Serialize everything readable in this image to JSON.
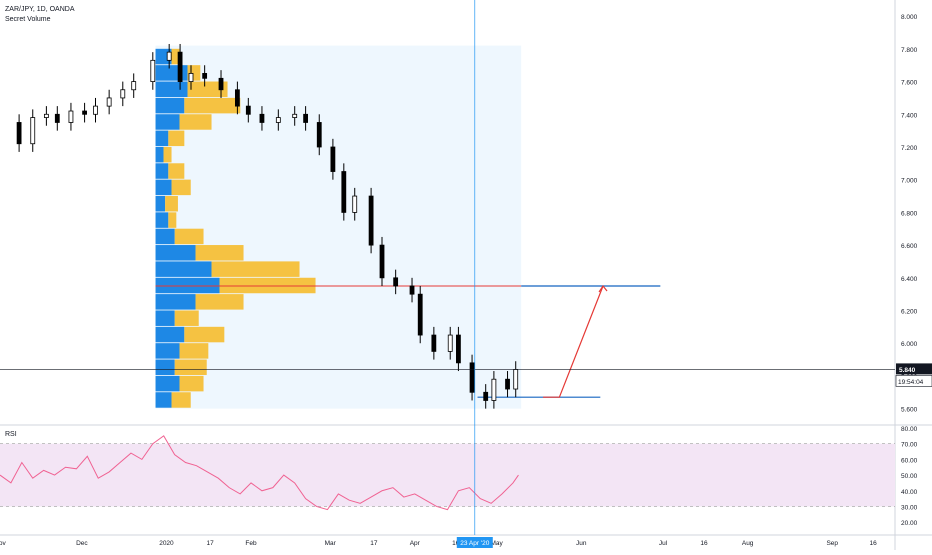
{
  "header": {
    "symbol": "ZAR/JPY, 1D, OANDA",
    "indicator": "Secret Volume"
  },
  "price_axis": {
    "ticks": [
      "8.000",
      "7.800",
      "7.600",
      "7.400",
      "7.200",
      "7.000",
      "6.800",
      "6.600",
      "6.400",
      "6.200",
      "6.000",
      "5.800",
      "5.600"
    ]
  },
  "last_price": {
    "value": "5.840",
    "countdown": "19:54:04"
  },
  "rsi": {
    "label": "RSI",
    "ticks": [
      "80.00",
      "70.00",
      "60.00",
      "50.00",
      "40.00",
      "30.00",
      "20.00"
    ],
    "band": [
      30,
      70
    ]
  },
  "time_axis": {
    "labels": [
      "Nov",
      "Dec",
      "2020",
      "17",
      "Feb",
      "Mar",
      "17",
      "Apr",
      "16",
      "May",
      "Jun",
      "Jul",
      "16",
      "Aug",
      "Sep",
      "16"
    ],
    "crosshair_label": "23 Apr '20"
  },
  "colors": {
    "up": "#ffffff",
    "down": "#000000",
    "volume_blue": "#1e88e5",
    "volume_gold": "#f5c242",
    "profile_box": "#e3f2fd",
    "poc_line": "#e53935",
    "target_line": "#1565c0",
    "arrow": "#e53935",
    "rsi_line": "#f06292",
    "rsi_band": "#f3e5f5",
    "crosshair": "#2196f3"
  },
  "chart_data": [
    {
      "type": "candlestick",
      "title": "ZAR/JPY, 1D, OANDA",
      "xlabel": "",
      "ylabel": "",
      "ylim": [
        5.5,
        8.05
      ],
      "x_range": [
        "2019-11-01",
        "2020-09-24"
      ],
      "series_close": {
        "dates": [
          "2019-11-04",
          "2019-11-08",
          "2019-11-13",
          "2019-11-18",
          "2019-11-22",
          "2019-11-27",
          "2019-12-02",
          "2019-12-06",
          "2019-12-11",
          "2019-12-16",
          "2019-12-20",
          "2019-12-27",
          "2020-01-02",
          "2020-01-06",
          "2020-01-10",
          "2020-01-15",
          "2020-01-21",
          "2020-01-27",
          "2020-01-31",
          "2020-02-05",
          "2020-02-11",
          "2020-02-17",
          "2020-02-21",
          "2020-02-26",
          "2020-03-02",
          "2020-03-06",
          "2020-03-10",
          "2020-03-16",
          "2020-03-20",
          "2020-03-25",
          "2020-03-31",
          "2020-04-03",
          "2020-04-08",
          "2020-04-14",
          "2020-04-17",
          "2020-04-22",
          "2020-04-27",
          "2020-04-30",
          "2020-05-05",
          "2020-05-08"
        ],
        "close": [
          7.35,
          7.22,
          7.38,
          7.4,
          7.35,
          7.42,
          7.4,
          7.45,
          7.5,
          7.55,
          7.6,
          7.73,
          7.78,
          7.6,
          7.65,
          7.62,
          7.55,
          7.45,
          7.4,
          7.35,
          7.38,
          7.4,
          7.35,
          7.2,
          7.05,
          6.8,
          6.9,
          6.6,
          6.4,
          6.35,
          6.3,
          6.05,
          5.95,
          6.05,
          5.88,
          5.7,
          5.65,
          5.78,
          5.72,
          5.84
        ]
      },
      "volume_profile": {
        "price_range": [
          5.6,
          7.82
        ],
        "poc_price": 6.35,
        "bins_price": [
          7.75,
          7.65,
          7.55,
          7.45,
          7.35,
          7.25,
          7.15,
          7.05,
          6.95,
          6.85,
          6.75,
          6.65,
          6.55,
          6.45,
          6.35,
          6.25,
          6.15,
          6.05,
          5.95,
          5.85,
          5.75,
          5.65
        ],
        "blue": [
          10,
          20,
          20,
          18,
          15,
          8,
          5,
          8,
          10,
          6,
          8,
          12,
          25,
          35,
          40,
          25,
          12,
          18,
          15,
          12,
          15,
          10
        ],
        "gold": [
          5,
          8,
          25,
          35,
          20,
          10,
          5,
          10,
          12,
          8,
          5,
          18,
          30,
          55,
          60,
          30,
          15,
          25,
          18,
          20,
          15,
          12
        ]
      },
      "annotations": {
        "poc_line_price": 6.35,
        "target_line_price": 5.67,
        "arrow_from": 5.67,
        "arrow_to": 6.35
      }
    },
    {
      "type": "line",
      "title": "RSI",
      "xlabel": "",
      "ylabel": "",
      "ylim": [
        15,
        80
      ],
      "x": [
        "2019-11-01",
        "2019-11-05",
        "2019-11-09",
        "2019-11-13",
        "2019-11-17",
        "2019-11-21",
        "2019-11-25",
        "2019-11-29",
        "2019-12-03",
        "2019-12-07",
        "2019-12-11",
        "2019-12-15",
        "2019-12-19",
        "2019-12-23",
        "2019-12-27",
        "2019-12-31",
        "2020-01-04",
        "2020-01-08",
        "2020-01-12",
        "2020-01-16",
        "2020-01-20",
        "2020-01-24",
        "2020-01-28",
        "2020-02-01",
        "2020-02-05",
        "2020-02-09",
        "2020-02-13",
        "2020-02-17",
        "2020-02-21",
        "2020-02-25",
        "2020-02-29",
        "2020-03-04",
        "2020-03-08",
        "2020-03-12",
        "2020-03-16",
        "2020-03-20",
        "2020-03-24",
        "2020-03-28",
        "2020-04-01",
        "2020-04-05",
        "2020-04-09",
        "2020-04-13",
        "2020-04-17",
        "2020-04-21",
        "2020-04-25",
        "2020-04-29",
        "2020-05-03",
        "2020-05-07",
        "2020-05-09"
      ],
      "values": [
        50,
        45,
        58,
        48,
        53,
        50,
        55,
        54,
        62,
        48,
        52,
        58,
        64,
        60,
        70,
        75,
        63,
        58,
        56,
        52,
        48,
        42,
        38,
        45,
        40,
        42,
        50,
        45,
        35,
        30,
        28,
        38,
        34,
        32,
        36,
        40,
        42,
        36,
        38,
        34,
        30,
        28,
        40,
        42,
        35,
        32,
        38,
        45,
        50
      ],
      "band": [
        30,
        70
      ]
    }
  ]
}
